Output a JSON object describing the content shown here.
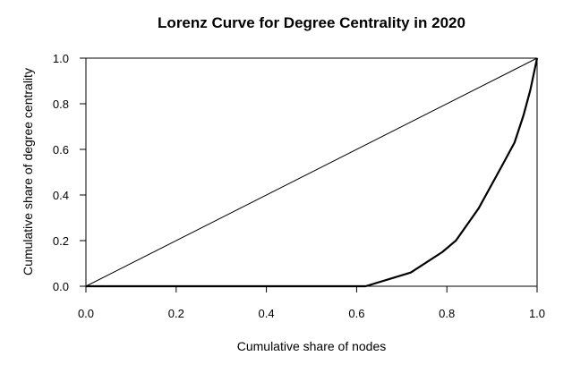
{
  "chart_data": {
    "type": "line",
    "title": "Lorenz Curve for Degree Centrality in 2020",
    "xlabel": "Cumulative share of nodes",
    "ylabel": "Cumulative share of degree centrality",
    "xlim": [
      0,
      1
    ],
    "ylim": [
      0,
      1
    ],
    "xticks": [
      "0.0",
      "0.2",
      "0.4",
      "0.6",
      "0.8",
      "1.0"
    ],
    "yticks": [
      "0.0",
      "0.2",
      "0.4",
      "0.6",
      "0.8",
      "1.0"
    ],
    "grid": false,
    "legend": "none",
    "series": [
      {
        "x": [
          0.0,
          0.62,
          0.72,
          0.79,
          0.82,
          0.87,
          0.92,
          0.95,
          0.97,
          0.985,
          1.0
        ],
        "y": [
          0.0,
          0.0,
          0.06,
          0.15,
          0.2,
          0.34,
          0.52,
          0.63,
          0.75,
          0.86,
          1.0
        ],
        "color": "#000000"
      },
      {
        "x": [
          0.0,
          1.0
        ],
        "y": [
          0.0,
          1.0
        ],
        "color": "#000000"
      }
    ]
  }
}
